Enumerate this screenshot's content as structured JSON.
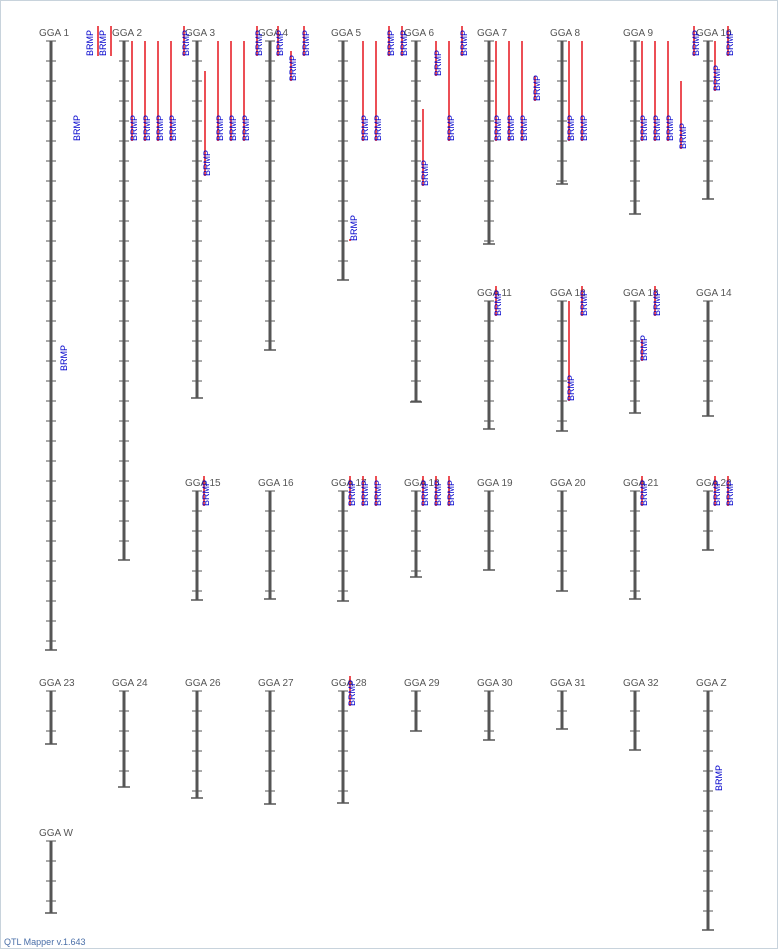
{
  "app": {
    "version_text": "QTL Mapper v.1.643"
  },
  "qtl_trait_label": "BRMP",
  "colors": {
    "chromosome": "#555555",
    "tick": "#555555",
    "qtl_bar": "#e8232b",
    "qtl_label": "#0000cc",
    "chrom_label": "#555555"
  },
  "chromosomes": [
    {
      "name": "GGA 1"
    },
    {
      "name": "GGA 2"
    },
    {
      "name": "GGA 3"
    },
    {
      "name": "GGA 4"
    },
    {
      "name": "GGA 5"
    },
    {
      "name": "GGA 6"
    },
    {
      "name": "GGA 7"
    },
    {
      "name": "GGA 8"
    },
    {
      "name": "GGA 9"
    },
    {
      "name": "GGA 10"
    },
    {
      "name": "GGA 11"
    },
    {
      "name": "GGA 12"
    },
    {
      "name": "GGA 13"
    },
    {
      "name": "GGA 14"
    },
    {
      "name": "GGA 15"
    },
    {
      "name": "GGA 16"
    },
    {
      "name": "GGA 17"
    },
    {
      "name": "GGA 18"
    },
    {
      "name": "GGA 19"
    },
    {
      "name": "GGA 20"
    },
    {
      "name": "GGA 21"
    },
    {
      "name": "GGA 22"
    },
    {
      "name": "GGA 23"
    },
    {
      "name": "GGA 24"
    },
    {
      "name": "GGA 26"
    },
    {
      "name": "GGA 27"
    },
    {
      "name": "GGA 28"
    },
    {
      "name": "GGA 29"
    },
    {
      "name": "GGA 30"
    },
    {
      "name": "GGA 31"
    },
    {
      "name": "GGA 32"
    },
    {
      "name": "GGA Z"
    },
    {
      "name": "GGA W"
    }
  ]
}
